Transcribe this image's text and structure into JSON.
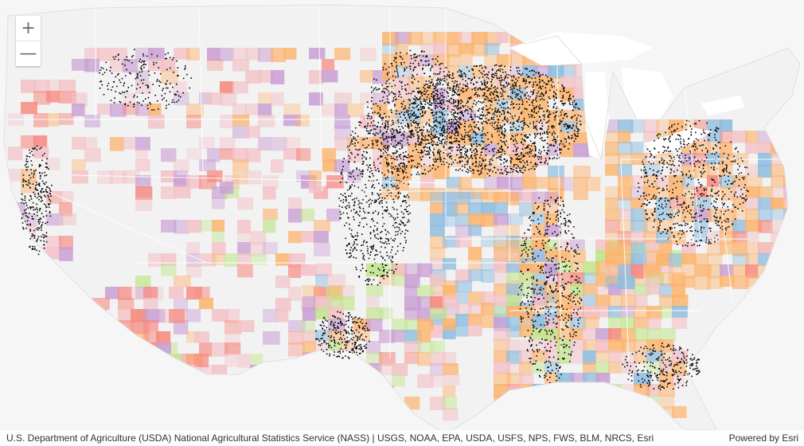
{
  "zoom": {
    "in_symbol": "+",
    "out_symbol": "—"
  },
  "attribution": {
    "text": "U.S. Department of Agriculture (USDA) National Agricultural Statistics Service (NASS) | USGS, NOAA, EPA, USDA, USFS, NPS, FWS, BLM, NRCS, Esri",
    "powered_by": "Powered by Esri"
  },
  "colors": {
    "water": "#ffffff",
    "land": "#f2f2f2",
    "neighbor_land": "#f6f6f6",
    "county_orange": "#fcb46e",
    "county_purple": "#c99fd4",
    "county_blue": "#8fbee0",
    "county_red": "#f68a80",
    "county_green": "#bfe58a",
    "county_pink": "#f3c2c7",
    "dots": "#000000",
    "state_border": "#ffffff"
  }
}
